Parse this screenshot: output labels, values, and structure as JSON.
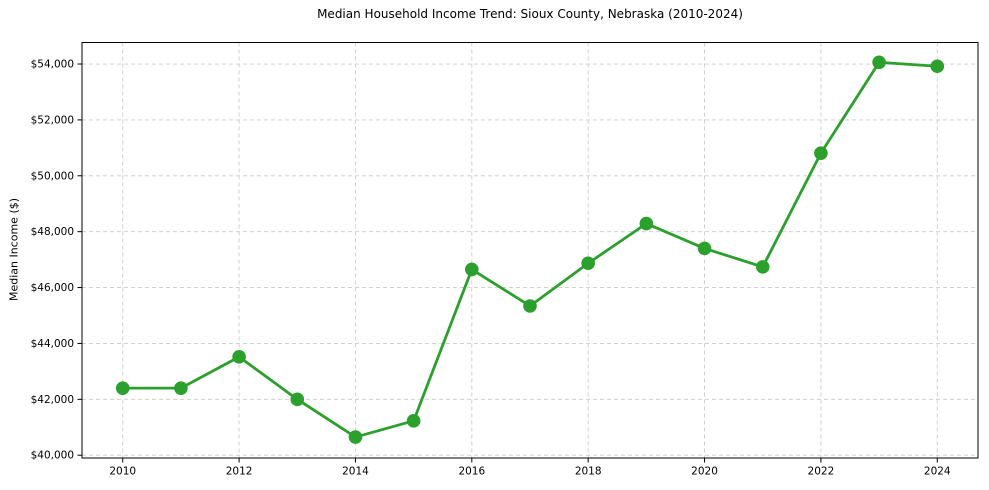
{
  "figure": {
    "title": "Median Household Income Trend: Sioux County, Nebraska (2010-2024)",
    "y_axis_label": "Median Income ($)"
  },
  "chart_data": {
    "type": "line",
    "title": "Median Household Income Trend: Sioux County, Nebraska (2010-2024)",
    "xlabel": "",
    "ylabel": "Median Income ($)",
    "x": [
      2010,
      2011,
      2012,
      2013,
      2014,
      2015,
      2016,
      2017,
      2018,
      2019,
      2020,
      2021,
      2022,
      2023,
      2024
    ],
    "values": [
      42400,
      42400,
      43520,
      42000,
      40650,
      41230,
      46650,
      45340,
      46870,
      48290,
      47400,
      46740,
      50810,
      54060,
      53920
    ],
    "line_color": "#2ca02c",
    "marker": "circle",
    "legend": false,
    "grid": true,
    "grid_color": "#cccccc",
    "xlim": [
      2009.3,
      2024.7
    ],
    "ylim": [
      39900,
      54770
    ],
    "xticks": [
      2010,
      2012,
      2014,
      2016,
      2018,
      2020,
      2022,
      2024
    ],
    "xtick_labels": [
      "2010",
      "2012",
      "2014",
      "2016",
      "2018",
      "2020",
      "2022",
      "2024"
    ],
    "yticks": [
      40000,
      42000,
      44000,
      46000,
      48000,
      50000,
      52000,
      54000
    ],
    "ytick_labels": [
      "$40,000",
      "$42,000",
      "$44,000",
      "$46,000",
      "$48,000",
      "$50,000",
      "$52,000",
      "$54,000"
    ]
  }
}
